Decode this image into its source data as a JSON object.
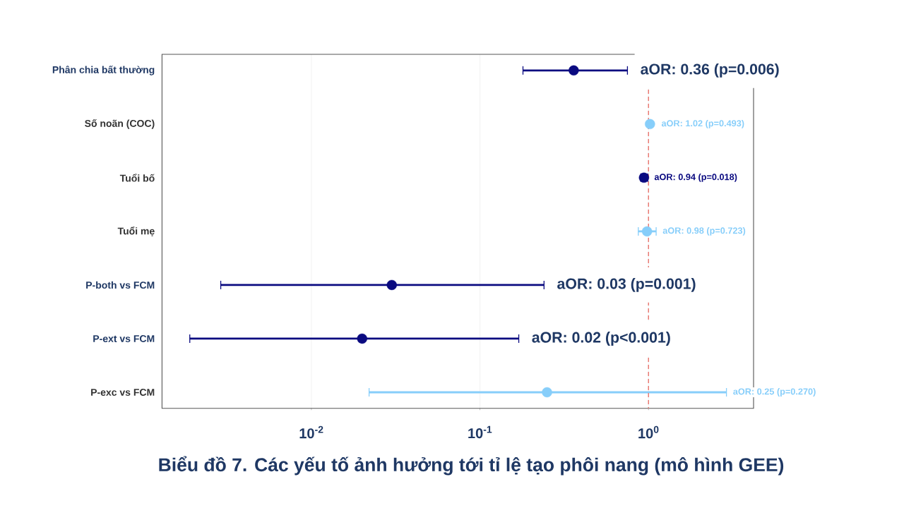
{
  "chart_data": {
    "type": "scatter",
    "orientation": "horizontal",
    "title": "Biểu đồ 7. Các yếu tố ảnh hưởng tới tỉ lệ tạo phôi nang (mô hình GEE)",
    "categories": [
      "Phân chia bất thường",
      "Số noãn (COC)",
      "Tuổi bố",
      "Tuổi mẹ",
      "P-both vs FCM",
      "P-ext vs FCM",
      "P-exc vs FCM"
    ],
    "values": [
      0.36,
      1.02,
      0.94,
      0.98,
      0.03,
      0.02,
      0.25
    ],
    "errors": [
      [
        0.18,
        0.75
      ],
      null,
      [
        0.9,
        0.99
      ],
      [
        0.87,
        1.11
      ],
      [
        0.0029,
        0.24
      ],
      [
        0.0019,
        0.17
      ],
      [
        0.022,
        2.9
      ]
    ],
    "colors": [
      "#0a0a80",
      "#87cefa",
      "#0a0a80",
      "#87cefa",
      "#0a0a80",
      "#0a0a80",
      "#87cefa"
    ],
    "annotations": [
      {
        "text": "aOR: 0.36 (p=0.006)",
        "x": 0.75,
        "y": "Phân chia bất thường"
      },
      {
        "text": "aOR: 1.02 (p=0.493)",
        "x": 1.02,
        "y": "Số noãn (COC)"
      },
      {
        "text": "aOR: 0.94 (p=0.018)",
        "x": 0.99,
        "y": "Tuổi bố"
      },
      {
        "text": "aOR: 0.98 (p=0.723)",
        "x": 1.11,
        "y": "Tuổi mẹ"
      },
      {
        "text": "aOR: 0.03 (p=0.001)",
        "x": 0.24,
        "y": "P-both vs FCM"
      },
      {
        "text": "aOR: 0.02 (p<0.001)",
        "x": 0.17,
        "y": "P-ext vs FCM"
      },
      {
        "text": "aOR: 0.25 (p=0.270)",
        "x": 2.9,
        "y": "P-exc vs FCM"
      }
    ],
    "xlim": [
      0.0013,
      4.2
    ],
    "xticks": [
      {
        "value": 0.01,
        "label": "10$^{-2}$"
      },
      {
        "value": 0.1,
        "label": "10$^{-1}$"
      },
      {
        "value": 1,
        "label": "10$^{0}$"
      }
    ],
    "log": "x",
    "grid": "x",
    "marker": "circle",
    "ref_lines": [
      {
        "axis": "x",
        "value": 1,
        "color": "#e8736c",
        "line_style": "dashed"
      }
    ]
  }
}
